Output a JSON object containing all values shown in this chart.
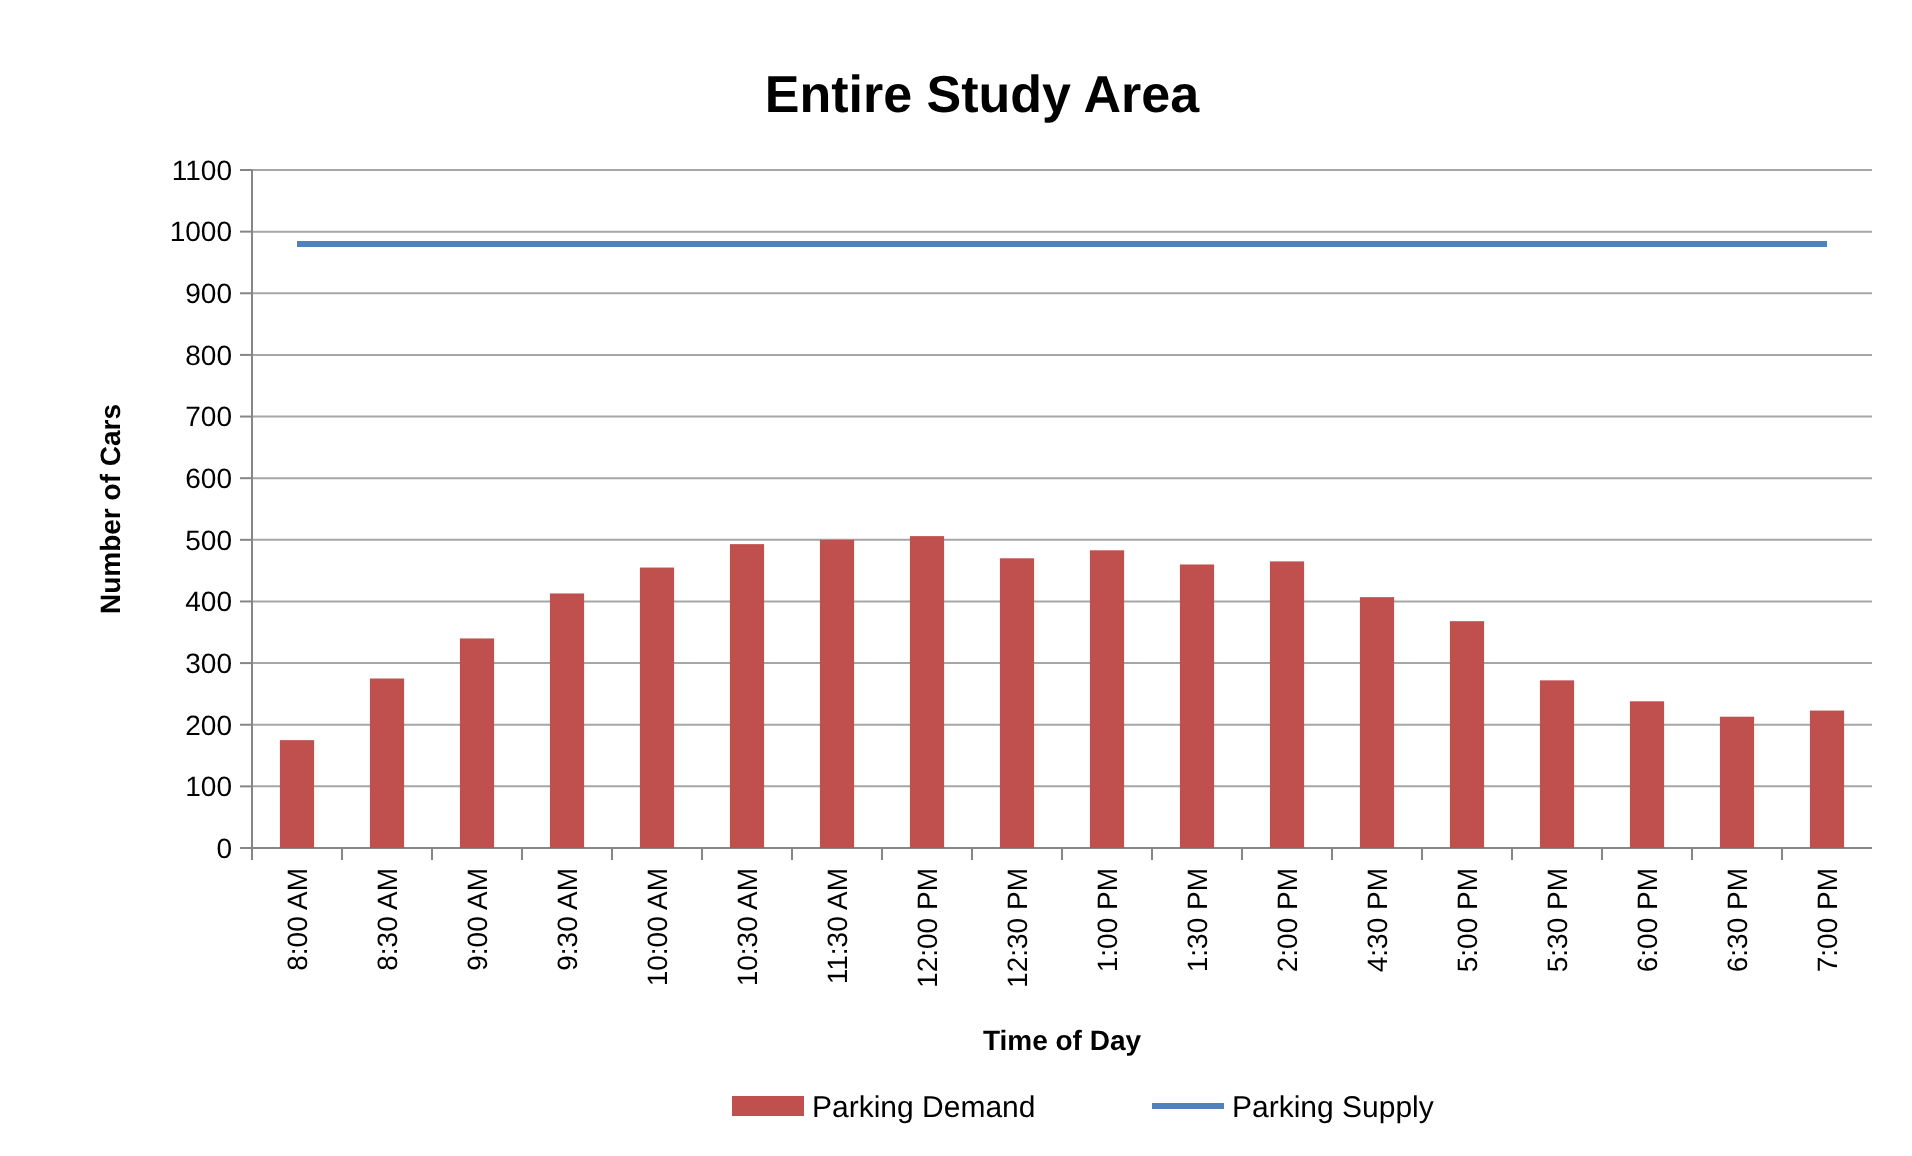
{
  "chart_data": {
    "type": "bar",
    "title": "Entire Study Area",
    "xlabel": "Time of Day",
    "ylabel": "Number of Cars",
    "categories": [
      "8:00 AM",
      "8:30 AM",
      "9:00 AM",
      "9:30 AM",
      "10:00 AM",
      "10:30 AM",
      "11:30 AM",
      "12:00 PM",
      "12:30 PM",
      "1:00 PM",
      "1:30 PM",
      "2:00 PM",
      "4:30 PM",
      "5:00 PM",
      "5:30 PM",
      "6:00 PM",
      "6:30 PM",
      "7:00 PM"
    ],
    "series": [
      {
        "name": "Parking Demand",
        "color": "#c0504d",
        "values": [
          175,
          275,
          340,
          413,
          455,
          493,
          500,
          506,
          470,
          483,
          460,
          465,
          407,
          368,
          272,
          238,
          213,
          223
        ]
      },
      {
        "name": "Parking Supply",
        "type": "line",
        "color": "#4f81bd",
        "values": [
          980,
          980,
          980,
          980,
          980,
          980,
          980,
          980,
          980,
          980,
          980,
          980,
          980,
          980,
          980,
          980,
          980,
          980
        ]
      }
    ],
    "ylim": [
      0,
      1100
    ],
    "yticks": [
      0,
      100,
      200,
      300,
      400,
      500,
      600,
      700,
      800,
      900,
      1000,
      1100
    ],
    "grid": "y",
    "legend": "bottom",
    "marker": "none"
  }
}
